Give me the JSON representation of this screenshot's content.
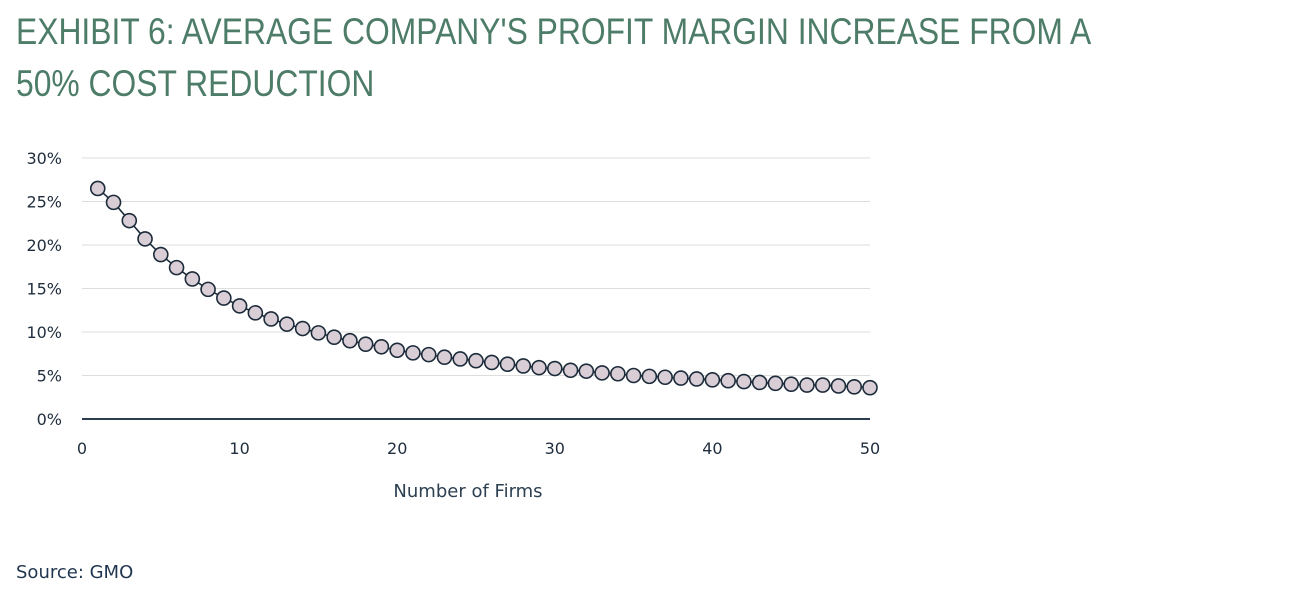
{
  "title": "EXHIBIT 6: AVERAGE COMPANY'S PROFIT MARGIN INCREASE FROM A 50% COST REDUCTION",
  "source": "Source: GMO",
  "chart_data": {
    "type": "line",
    "xlabel": "Number of Firms",
    "ylabel": "",
    "xlim": [
      0,
      50
    ],
    "ylim": [
      0,
      30
    ],
    "xticks": [
      0,
      10,
      20,
      30,
      40,
      50
    ],
    "yticks": [
      0,
      5,
      10,
      15,
      20,
      25,
      30
    ],
    "xtick_labels": [
      "0",
      "10",
      "20",
      "30",
      "40",
      "50"
    ],
    "ytick_labels": [
      "0%",
      "5%",
      "10%",
      "15%",
      "20%",
      "25%",
      "30%"
    ],
    "grid": "horizontal",
    "markers": "circle",
    "line_color": "#1c2b3a",
    "marker_fill": "#d9cdd6",
    "grid_color": "#dddddd",
    "axis_color": "#2b3e50",
    "series": [
      {
        "x": [
          1,
          2,
          3,
          4,
          5,
          6,
          7,
          8,
          9,
          10,
          11,
          12,
          13,
          14,
          15,
          16,
          17,
          18,
          19,
          20,
          21,
          22,
          23,
          24,
          25,
          26,
          27,
          28,
          29,
          30,
          31,
          32,
          33,
          34,
          35,
          36,
          37,
          38,
          39,
          40,
          41,
          42,
          43,
          44,
          45,
          46,
          47,
          48,
          49,
          50
        ],
        "values": [
          26.5,
          24.9,
          22.8,
          20.7,
          18.9,
          17.4,
          16.1,
          14.9,
          13.9,
          13.0,
          12.2,
          11.5,
          10.9,
          10.4,
          9.9,
          9.4,
          9.0,
          8.6,
          8.3,
          7.9,
          7.6,
          7.4,
          7.1,
          6.9,
          6.7,
          6.5,
          6.3,
          6.1,
          5.9,
          5.8,
          5.6,
          5.5,
          5.3,
          5.2,
          5.0,
          4.9,
          4.8,
          4.7,
          4.6,
          4.5,
          4.4,
          4.3,
          4.2,
          4.1,
          4.0,
          3.9,
          3.9,
          3.8,
          3.7,
          3.6
        ]
      }
    ]
  }
}
